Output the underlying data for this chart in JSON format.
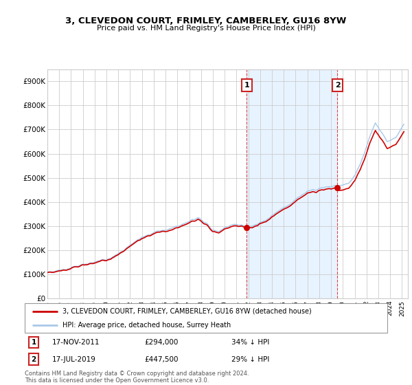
{
  "title": "3, CLEVEDON COURT, FRIMLEY, CAMBERLEY, GU16 8YW",
  "subtitle": "Price paid vs. HM Land Registry's House Price Index (HPI)",
  "ylim": [
    0,
    950000
  ],
  "yticks": [
    0,
    100000,
    200000,
    300000,
    400000,
    500000,
    600000,
    700000,
    800000,
    900000
  ],
  "ytick_labels": [
    "£0",
    "£100K",
    "£200K",
    "£300K",
    "£400K",
    "£500K",
    "£600K",
    "£700K",
    "£800K",
    "£900K"
  ],
  "hpi_color": "#a8c8e8",
  "hpi_fill_color": "#ddeeff",
  "sale_color": "#cc0000",
  "grid_color": "#cccccc",
  "sale1_date": "17-NOV-2011",
  "sale1_price": 294000,
  "sale1_hpi_pct": "34% ↓ HPI",
  "sale2_date": "17-JUL-2019",
  "sale2_price": 447500,
  "sale2_hpi_pct": "29% ↓ HPI",
  "legend_label1": "3, CLEVEDON COURT, FRIMLEY, CAMBERLEY, GU16 8YW (detached house)",
  "legend_label2": "HPI: Average price, detached house, Surrey Heath",
  "footer": "Contains HM Land Registry data © Crown copyright and database right 2024.\nThis data is licensed under the Open Government Licence v3.0.",
  "sale1_year": 2011,
  "sale1_month": 11,
  "sale2_year": 2019,
  "sale2_month": 7
}
